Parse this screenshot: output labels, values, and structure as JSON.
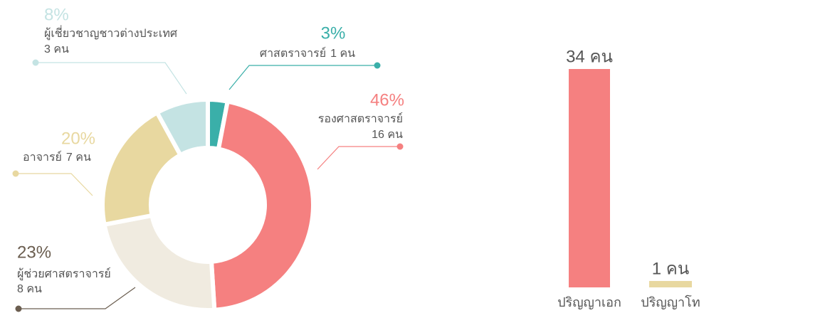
{
  "chart_data": [
    {
      "type": "donut",
      "categories": [
        "ศาสตราจารย์",
        "รองศาสตราจารย์",
        "ผู้ช่วยศาสตราจารย์",
        "อาจารย์",
        "ผู้เชี่ยวชาญชาวต่างประเทศ"
      ],
      "counts": [
        "1 คน",
        "16 คน",
        "8 คน",
        "7 คน",
        "3 คน"
      ],
      "values": [
        3,
        46,
        23,
        20,
        8
      ],
      "value_labels": [
        "3%",
        "46%",
        "23%",
        "20%",
        "8%"
      ],
      "colors": [
        "#3aafa9",
        "#f58080",
        "#f0ebe0",
        "#e8d8a0",
        "#c4e3e3"
      ],
      "label_colors": [
        "#3aafa9",
        "#f58080",
        "#6b5e50",
        "#e8d8a0",
        "#c4e3e3"
      ]
    },
    {
      "type": "bar",
      "categories": [
        "ปริญญาเอก",
        "ปริญญาโท"
      ],
      "values": [
        34,
        1
      ],
      "value_labels": [
        "34 คน",
        "1 คน"
      ],
      "colors": [
        "#f58080",
        "#e8d8a0"
      ]
    }
  ]
}
